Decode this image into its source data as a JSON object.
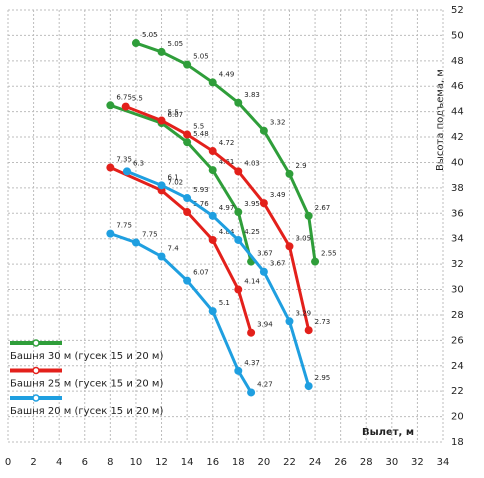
{
  "chart_data": {
    "type": "line",
    "x_label": "Вылет, м",
    "y_label": "Высота подъема, м",
    "xlim": [
      0,
      34
    ],
    "xticks": [
      0,
      2,
      4,
      6,
      8,
      10,
      12,
      14,
      16,
      18,
      20,
      22,
      24,
      26,
      28,
      30,
      32,
      34
    ],
    "ylim": [
      18,
      52
    ],
    "yticks": [
      18,
      20,
      22,
      24,
      26,
      28,
      30,
      32,
      34,
      36,
      38,
      40,
      42,
      44,
      46,
      48,
      50,
      52
    ],
    "grid": true,
    "legend_position": "lower left",
    "legend": [
      {
        "name": "Башня 30 м (гусек 15 и 20 м)",
        "color": "#2f9e3a"
      },
      {
        "name": "Башня 25 м (гусек 15 и 20 м)",
        "color": "#e3201b"
      },
      {
        "name": "Башня 20 м (гусек 15 и 20 м)",
        "color": "#1f9fe0"
      }
    ],
    "series": [
      {
        "color": "#2f9e3a",
        "x": [
          10,
          12,
          14,
          16,
          18,
          20,
          22,
          23.5,
          24
        ],
        "values": [
          49.4,
          48.7,
          47.7,
          46.3,
          44.7,
          42.5,
          39.1,
          35.8,
          32.2
        ],
        "loads": [
          5.05,
          5.05,
          5.05,
          4.49,
          3.83,
          3.32,
          2.9,
          2.67,
          2.55
        ]
      },
      {
        "color": "#2f9e3a",
        "x": [
          8,
          12,
          14,
          16,
          18,
          19
        ],
        "values": [
          44.5,
          43.1,
          41.6,
          39.4,
          36.1,
          32.2
        ],
        "loads": [
          6.75,
          6.07,
          5.48,
          4.61,
          3.95,
          3.67
        ]
      },
      {
        "color": "#e3201b",
        "x": [
          9.2,
          12,
          14,
          16,
          18,
          20,
          22,
          23.5
        ],
        "values": [
          44.4,
          43.3,
          42.2,
          40.9,
          39.3,
          36.8,
          33.4,
          26.8
        ],
        "loads": [
          5.5,
          5.5,
          5.5,
          4.72,
          4.03,
          3.49,
          3.05,
          2.73
        ]
      },
      {
        "color": "#e3201b",
        "x": [
          8,
          12,
          14,
          16,
          18,
          19
        ],
        "values": [
          39.6,
          37.8,
          36.1,
          33.9,
          30,
          26.6
        ],
        "loads": [
          7.35,
          7.02,
          5.76,
          4.84,
          4.14,
          3.94
        ]
      },
      {
        "color": "#1f9fe0",
        "x": [
          9.3,
          12,
          14,
          16,
          18,
          20,
          22,
          23.5
        ],
        "values": [
          39.3,
          38.2,
          37.2,
          35.8,
          33.9,
          31.4,
          27.5,
          22.4
        ],
        "loads": [
          6.3,
          6.1,
          5.93,
          4.97,
          4.25,
          3.67,
          3.29,
          2.95
        ]
      },
      {
        "color": "#1f9fe0",
        "x": [
          8,
          10,
          12,
          14,
          16,
          18,
          19
        ],
        "values": [
          34.4,
          33.7,
          32.6,
          30.7,
          28.3,
          23.6,
          21.9
        ],
        "loads": [
          7.75,
          7.75,
          7.4,
          6.07,
          5.1,
          4.37,
          4.27
        ]
      }
    ]
  }
}
